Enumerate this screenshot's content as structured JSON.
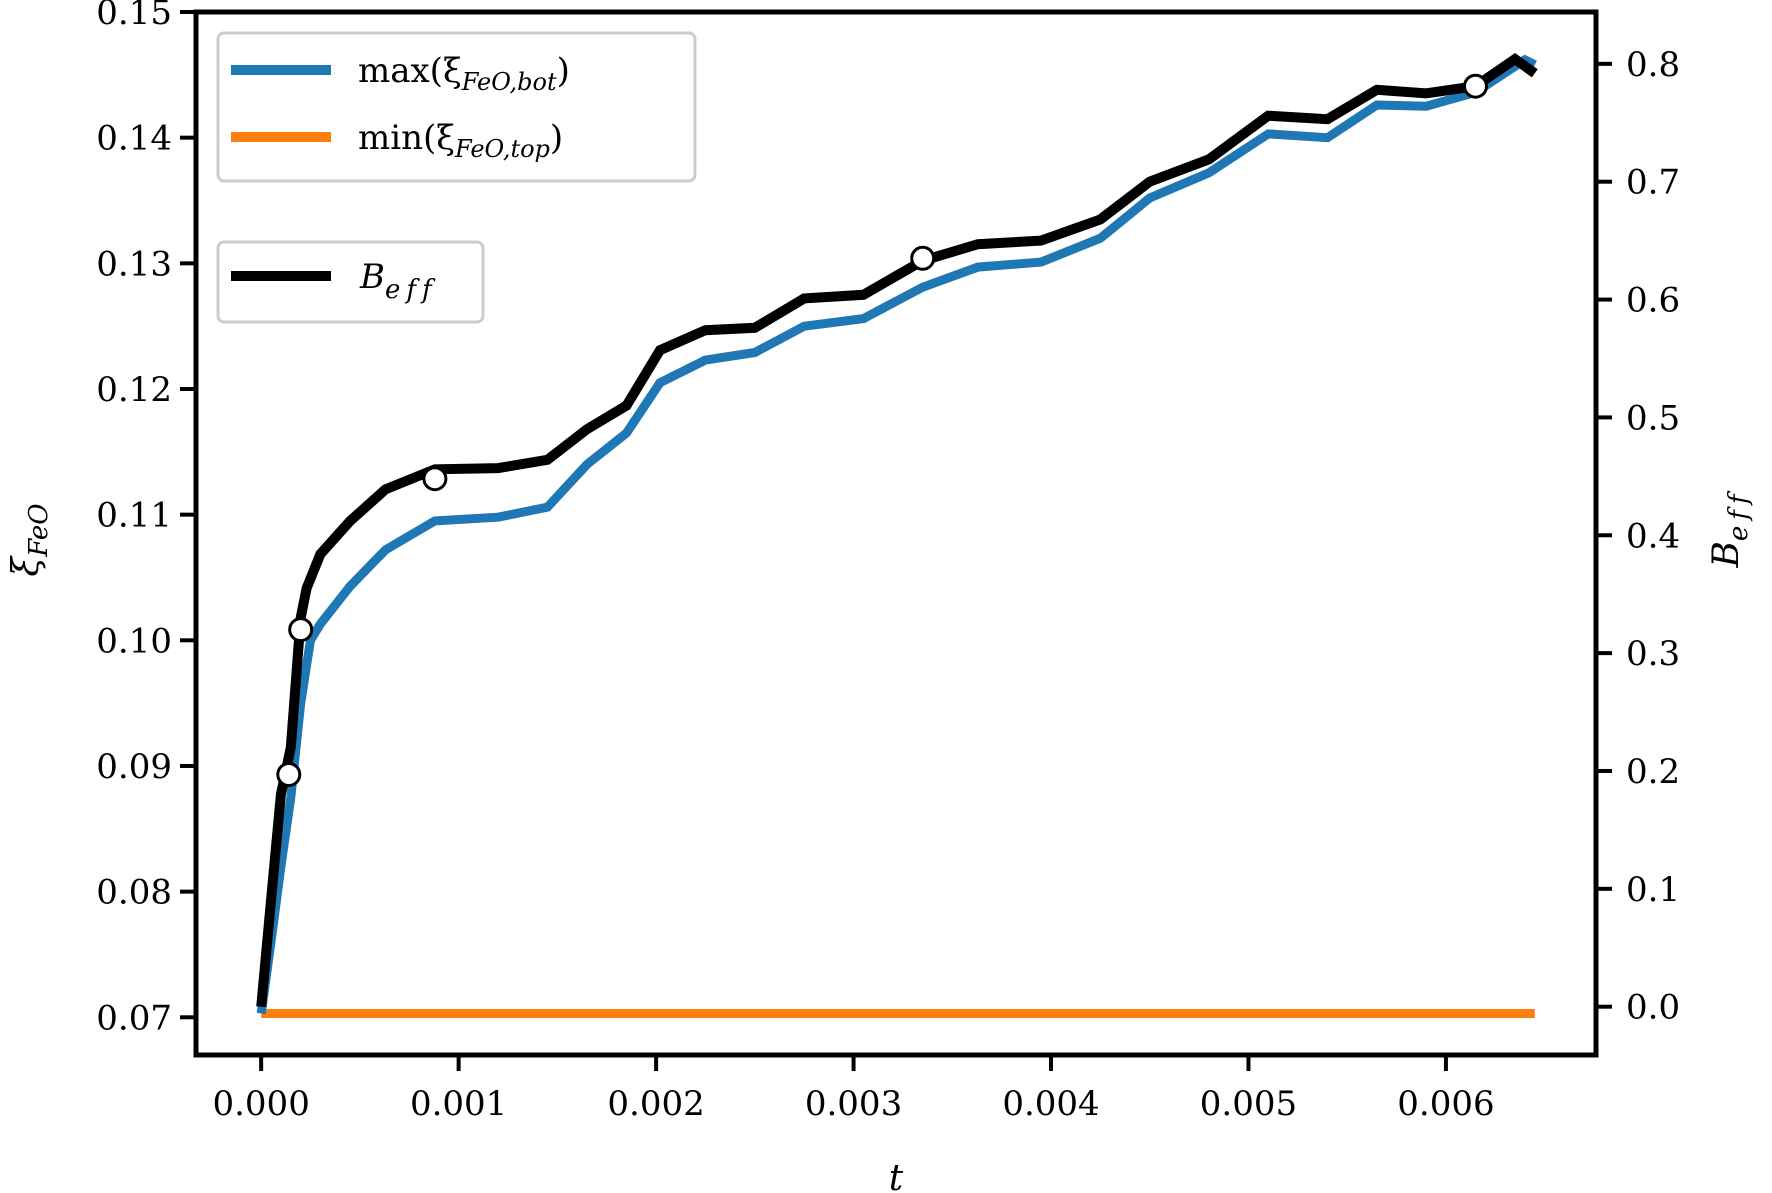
{
  "chart_data": {
    "type": "line",
    "xlabel": "t",
    "ylabel_left": "ξFeO",
    "ylabel_right": "Beff",
    "xlim": [
      -0.00033,
      0.00676
    ],
    "ylim_left": [
      0.067,
      0.15
    ],
    "ylim_right": [
      -0.041,
      0.844
    ],
    "xticks": [
      "0.000",
      "0.001",
      "0.002",
      "0.003",
      "0.004",
      "0.005",
      "0.006"
    ],
    "yticks_left": [
      "0.07",
      "0.08",
      "0.09",
      "0.10",
      "0.11",
      "0.12",
      "0.13",
      "0.14",
      "0.15"
    ],
    "yticks_right": [
      "0.0",
      "0.1",
      "0.2",
      "0.3",
      "0.4",
      "0.5",
      "0.6",
      "0.7",
      "0.8"
    ],
    "grid": false,
    "legend_placement": "top-left",
    "series": [
      {
        "name": "max(ξFeO,bot)",
        "axis": "left",
        "color": "#1f77b4",
        "x": [
          0.0,
          5e-05,
          0.0001,
          0.00015,
          0.0002,
          0.00025,
          0.0003,
          0.00045,
          0.00063,
          0.00088,
          0.0012,
          0.00145,
          0.00165,
          0.00185,
          0.00202,
          0.00225,
          0.0025,
          0.00275,
          0.00305,
          0.00335,
          0.00363,
          0.00395,
          0.00425,
          0.0045,
          0.0048,
          0.0051,
          0.0054,
          0.00565,
          0.0059,
          0.00615,
          0.0064,
          0.00645
        ],
        "y": [
          0.0703,
          0.076,
          0.082,
          0.0875,
          0.095,
          0.1,
          0.1013,
          0.1043,
          0.1072,
          0.1095,
          0.1098,
          0.1106,
          0.114,
          0.1165,
          0.1205,
          0.1223,
          0.1229,
          0.125,
          0.1256,
          0.1281,
          0.1297,
          0.1301,
          0.132,
          0.1352,
          0.1372,
          0.1403,
          0.14,
          0.1426,
          0.1425,
          0.1436,
          0.1462,
          0.1458
        ]
      },
      {
        "name": "min(ξFeO,top)",
        "axis": "left",
        "color": "#ff7f0e",
        "x": [
          0.0,
          0.00645
        ],
        "y": [
          0.0703,
          0.0703
        ]
      },
      {
        "name": "Beff",
        "axis": "right",
        "color": "#000000",
        "x": [
          0.0,
          5e-05,
          0.0001,
          0.00015,
          0.0002,
          0.00023,
          0.0003,
          0.00045,
          0.00063,
          0.00088,
          0.0012,
          0.00145,
          0.00165,
          0.00185,
          0.00202,
          0.00225,
          0.0025,
          0.00275,
          0.00305,
          0.00335,
          0.00363,
          0.00395,
          0.00425,
          0.0045,
          0.0048,
          0.0051,
          0.0054,
          0.00565,
          0.0059,
          0.00615,
          0.00635,
          0.00645
        ],
        "y": [
          0.0,
          0.09,
          0.18,
          0.22,
          0.33,
          0.355,
          0.384,
          0.412,
          0.439,
          0.456,
          0.457,
          0.464,
          0.49,
          0.51,
          0.557,
          0.574,
          0.576,
          0.601,
          0.604,
          0.633,
          0.647,
          0.65,
          0.668,
          0.7,
          0.719,
          0.756,
          0.753,
          0.778,
          0.775,
          0.781,
          0.804,
          0.792
        ],
        "markers": {
          "x": [
            0.00014,
            0.0002,
            0.00088,
            0.00335,
            0.00615
          ],
          "y": [
            0.197,
            0.32,
            0.448,
            0.635,
            0.781
          ]
        }
      }
    ]
  },
  "legend_main": {
    "entries": [
      {
        "prefix": "max(",
        "sym": "ξ",
        "sub": "FeO,bot",
        "suffix": ")",
        "color": "#1f77b4"
      },
      {
        "prefix": "min(",
        "sym": "ξ",
        "sub": "FeO,top",
        "suffix": ")",
        "color": "#ff7f0e"
      }
    ]
  },
  "legend_beff": {
    "sym": "B",
    "sub": "eff",
    "color": "#000000"
  },
  "labels": {
    "x": "t",
    "left_sym": "ξ",
    "left_sub": "FeO",
    "right_sym": "B",
    "right_sub": "eff"
  }
}
